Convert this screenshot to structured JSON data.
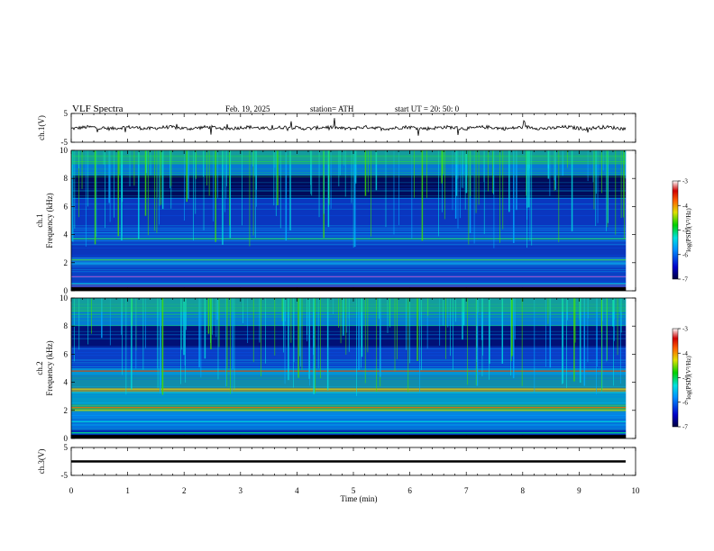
{
  "header": {
    "title": "VLF  Spectra",
    "date": "Feb. 19, 2025",
    "station": "station= ATH",
    "start": "start  UT  =    20: 50: 0"
  },
  "chart_data": [
    {
      "type": "line",
      "name": "ch1-waveform",
      "ylabel": "ch.1(V)",
      "ylim": [
        -5,
        5
      ],
      "yticks": [
        "5",
        "-5"
      ],
      "xlim": [
        0,
        10
      ],
      "baseline": 0,
      "color": "#000000"
    },
    {
      "type": "heatmap",
      "name": "ch1-spectrogram",
      "ylabel_line1": "ch.1",
      "ylabel_line2": "Frequency  (kHz)",
      "ylim": [
        0,
        10
      ],
      "yticks": [
        "0",
        "2",
        "4",
        "6",
        "8",
        "10"
      ],
      "xlim": [
        0,
        10
      ],
      "data_end_min": 9.83,
      "colorbar": {
        "label": "log(PSD)(V²/Hz)",
        "range": [
          -7,
          -3
        ],
        "ticks": [
          "-3",
          "-4",
          "-5",
          "-6",
          "-7"
        ]
      }
    },
    {
      "type": "heatmap",
      "name": "ch2-spectrogram",
      "ylabel_line1": "ch.2",
      "ylabel_line2": "Frequency  (kHz)",
      "ylim": [
        0,
        10
      ],
      "yticks": [
        "0",
        "2",
        "4",
        "6",
        "8",
        "10"
      ],
      "xlim": [
        0,
        10
      ],
      "data_end_min": 9.83,
      "colorbar": {
        "label": "log(PSD)(V²/Hz)",
        "range": [
          -7,
          -3
        ],
        "ticks": [
          "-3",
          "-4",
          "-5",
          "-6",
          "-7"
        ]
      }
    },
    {
      "type": "line",
      "name": "ch3-waveform",
      "ylabel": "ch.3(V)",
      "ylim": [
        -5,
        5
      ],
      "yticks": [
        "5",
        "-5"
      ],
      "xlim": [
        0,
        10
      ],
      "baseline": 0,
      "color": "#000000"
    }
  ],
  "xaxis": {
    "label": "Time  (min)",
    "ticks": [
      "0",
      "1",
      "2",
      "3",
      "4",
      "5",
      "6",
      "7",
      "8",
      "9",
      "10"
    ]
  }
}
